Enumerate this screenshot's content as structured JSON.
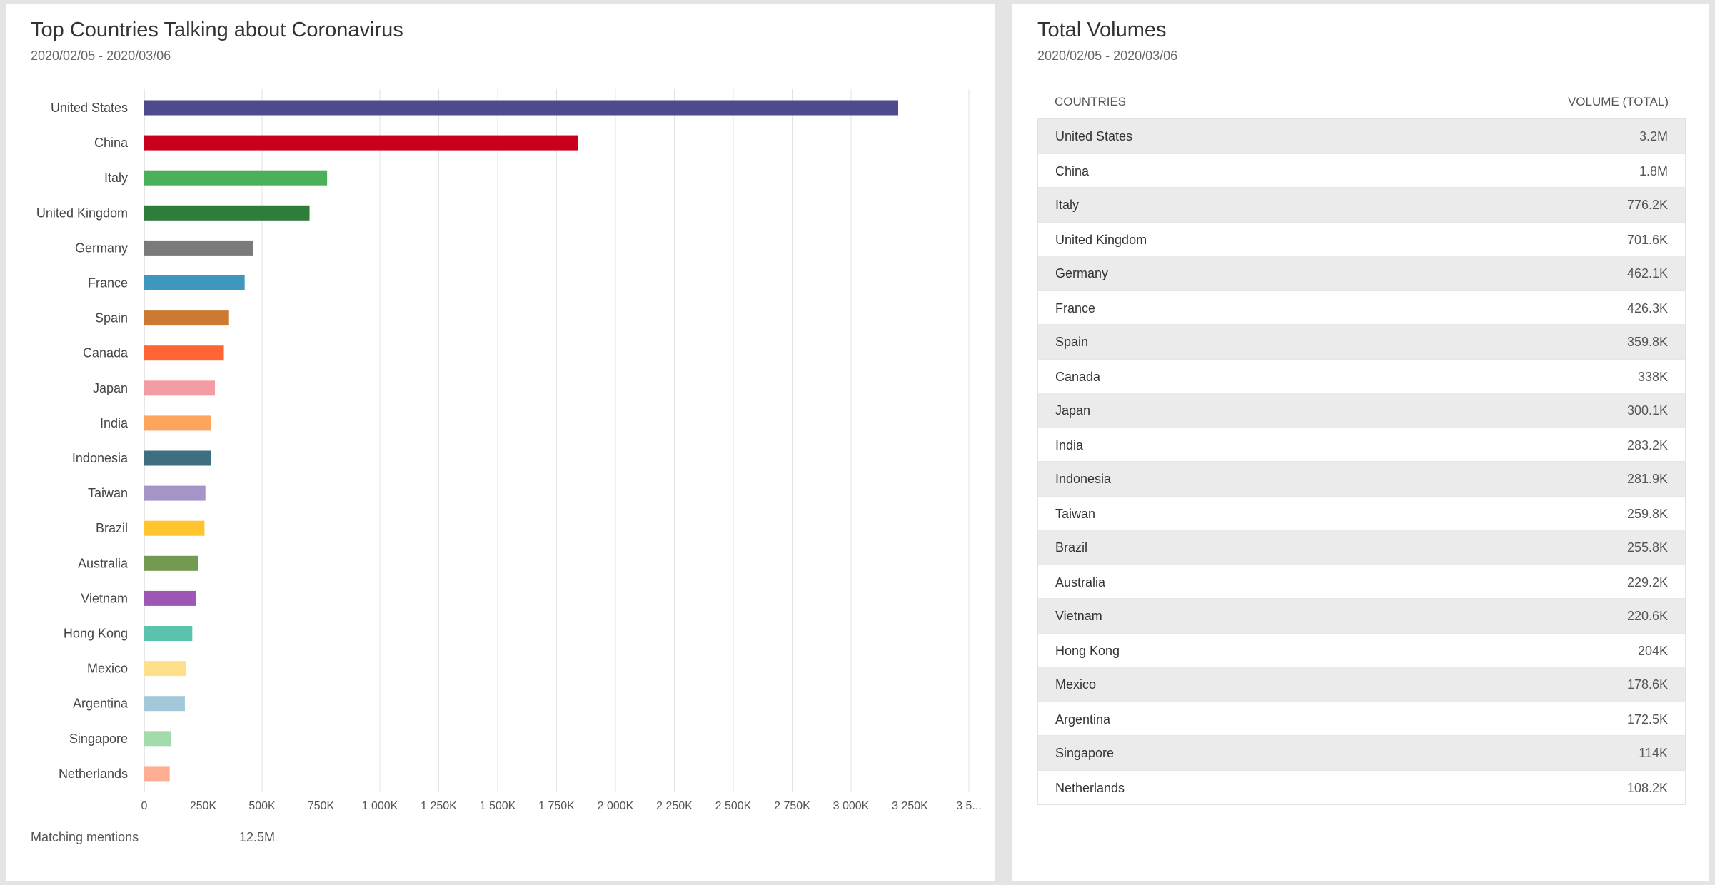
{
  "left_panel": {
    "title": "Top Countries Talking about Coronavirus",
    "subtitle": "2020/02/05 - 2020/03/06",
    "footer_label": "Matching mentions",
    "footer_value": "12.5M"
  },
  "right_panel": {
    "title": "Total Volumes",
    "subtitle": "2020/02/05 - 2020/03/06",
    "col_country": "COUNTRIES",
    "col_volume": "VOLUME (TOTAL)",
    "rows": [
      {
        "country": "United States",
        "volume": "3.2M"
      },
      {
        "country": "China",
        "volume": "1.8M"
      },
      {
        "country": "Italy",
        "volume": "776.2K"
      },
      {
        "country": "United Kingdom",
        "volume": "701.6K"
      },
      {
        "country": "Germany",
        "volume": "462.1K"
      },
      {
        "country": "France",
        "volume": "426.3K"
      },
      {
        "country": "Spain",
        "volume": "359.8K"
      },
      {
        "country": "Canada",
        "volume": "338K"
      },
      {
        "country": "Japan",
        "volume": "300.1K"
      },
      {
        "country": "India",
        "volume": "283.2K"
      },
      {
        "country": "Indonesia",
        "volume": "281.9K"
      },
      {
        "country": "Taiwan",
        "volume": "259.8K"
      },
      {
        "country": "Brazil",
        "volume": "255.8K"
      },
      {
        "country": "Australia",
        "volume": "229.2K"
      },
      {
        "country": "Vietnam",
        "volume": "220.6K"
      },
      {
        "country": "Hong Kong",
        "volume": "204K"
      },
      {
        "country": "Mexico",
        "volume": "178.6K"
      },
      {
        "country": "Argentina",
        "volume": "172.5K"
      },
      {
        "country": "Singapore",
        "volume": "114K"
      },
      {
        "country": "Netherlands",
        "volume": "108.2K"
      }
    ]
  },
  "chart_data": {
    "type": "bar",
    "orientation": "horizontal",
    "title": "Top Countries Talking about Coronavirus",
    "subtitle": "2020/02/05 - 2020/03/06",
    "categories": [
      "United States",
      "China",
      "Italy",
      "United Kingdom",
      "Germany",
      "France",
      "Spain",
      "Canada",
      "Japan",
      "India",
      "Indonesia",
      "Taiwan",
      "Brazil",
      "Australia",
      "Vietnam",
      "Hong Kong",
      "Mexico",
      "Argentina",
      "Singapore",
      "Netherlands"
    ],
    "values": [
      3200000,
      1840000,
      776200,
      701600,
      462100,
      426300,
      359800,
      338000,
      300100,
      283200,
      281900,
      259800,
      255800,
      229200,
      220600,
      204000,
      178600,
      172500,
      114000,
      108200
    ],
    "colors": [
      "#4e4b8c",
      "#c8001e",
      "#4caf5a",
      "#2e7d3a",
      "#7a7a7a",
      "#3e97be",
      "#cc7a33",
      "#ff6633",
      "#f49ca3",
      "#ffa45c",
      "#3e6f80",
      "#a694c8",
      "#ffc42e",
      "#739a50",
      "#9e57b4",
      "#5ac2ad",
      "#ffe08a",
      "#a3c8da",
      "#a3dbab",
      "#ffad93"
    ],
    "xlim": [
      0,
      3500000
    ],
    "x_ticks": [
      0,
      250000,
      500000,
      750000,
      1000000,
      1250000,
      1500000,
      1750000,
      2000000,
      2250000,
      2500000,
      2750000,
      3000000,
      3250000,
      3500000
    ],
    "x_tick_labels": [
      "0",
      "250K",
      "500K",
      "750K",
      "1 000K",
      "1 250K",
      "1 500K",
      "1 750K",
      "2 000K",
      "2 250K",
      "2 500K",
      "2 750K",
      "3 000K",
      "3 250K",
      "3 5..."
    ],
    "grid": "vertical",
    "xlabel": "",
    "ylabel": ""
  }
}
